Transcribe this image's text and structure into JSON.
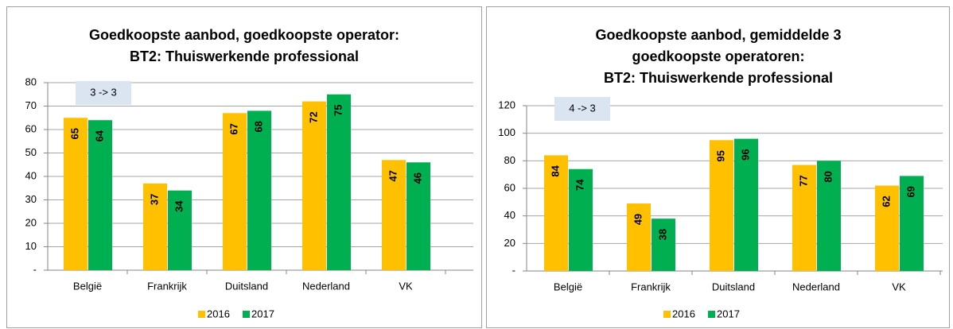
{
  "chart_data": [
    {
      "type": "bar",
      "title": [
        "Goedkoopste aanbod, goedkoopste operator:",
        "BT2: Thuiswerkende professional"
      ],
      "annotation": "3 -> 3",
      "categories": [
        "België",
        "Frankrijk",
        "Duitsland",
        "Nederland",
        "VK"
      ],
      "series": [
        {
          "name": "2016",
          "color": "#ffc000",
          "values": [
            65,
            37,
            67,
            72,
            47
          ]
        },
        {
          "name": "2017",
          "color": "#00b050",
          "values": [
            64,
            34,
            68,
            75,
            46
          ]
        }
      ],
      "ylim": [
        0,
        80
      ],
      "yticks": [
        {
          "value": 0,
          "label": "-"
        },
        10,
        20,
        30,
        40,
        50,
        60,
        70,
        80
      ],
      "grid": true,
      "legend": "bottom"
    },
    {
      "type": "bar",
      "title": [
        "Goedkoopste aanbod, gemiddelde 3",
        "goedkoopste operatoren:",
        "BT2: Thuiswerkende professional"
      ],
      "annotation": "4 -> 3",
      "categories": [
        "België",
        "Frankrijk",
        "Duitsland",
        "Nederland",
        "VK"
      ],
      "series": [
        {
          "name": "2016",
          "color": "#ffc000",
          "values": [
            84,
            49,
            95,
            77,
            62
          ]
        },
        {
          "name": "2017",
          "color": "#00b050",
          "values": [
            74,
            38,
            96,
            80,
            69
          ]
        }
      ],
      "ylim": [
        0,
        120
      ],
      "yticks": [
        {
          "value": 0,
          "label": "-"
        },
        20,
        40,
        60,
        80,
        100,
        120
      ],
      "grid": true,
      "legend": "bottom"
    }
  ]
}
